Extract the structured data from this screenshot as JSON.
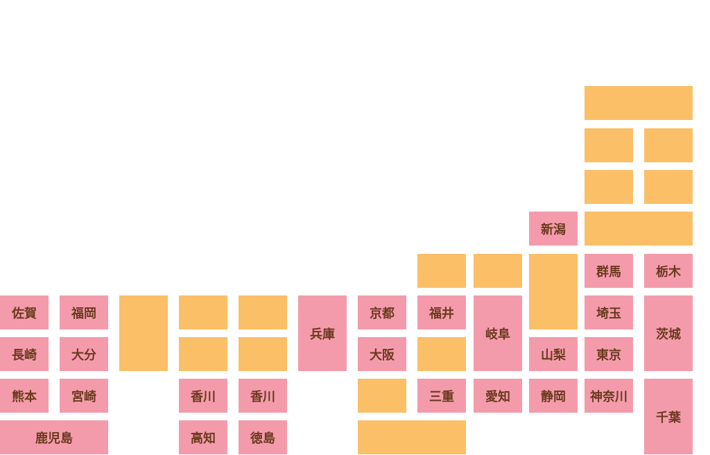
{
  "tiles": [
    {
      "label": "佐賀"
    },
    {
      "label": "福岡"
    },
    {
      "label": "長崎"
    },
    {
      "label": "大分"
    },
    {
      "label": "熊本"
    },
    {
      "label": "宮崎"
    },
    {
      "label": "鹿児島"
    },
    {
      "label": "香川"
    },
    {
      "label": "香川"
    },
    {
      "label": "高知"
    },
    {
      "label": "徳島"
    },
    {
      "label": "兵庫"
    },
    {
      "label": "京都"
    },
    {
      "label": "大阪"
    },
    {
      "label": "福井"
    },
    {
      "label": "三重"
    },
    {
      "label": "岐阜"
    },
    {
      "label": "愛知"
    },
    {
      "label": "新潟"
    },
    {
      "label": "山梨"
    },
    {
      "label": "静岡"
    },
    {
      "label": "群馬"
    },
    {
      "label": "栃木"
    },
    {
      "label": "埼玉"
    },
    {
      "label": "東京"
    },
    {
      "label": "神奈川"
    },
    {
      "label": "茨城"
    },
    {
      "label": "千葉"
    }
  ]
}
